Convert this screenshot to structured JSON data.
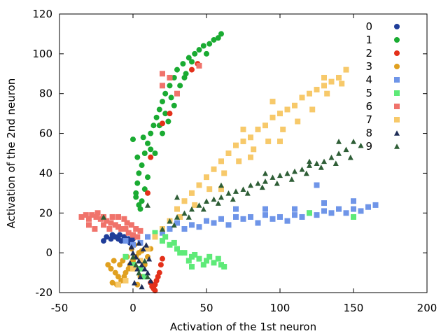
{
  "chart_data": {
    "type": "scatter",
    "title": "",
    "xlabel": "Activation of the 1st neuron",
    "ylabel": "Activation of the 2nd neuron",
    "xlim": [
      -50,
      200
    ],
    "ylim": [
      -20,
      120
    ],
    "xticks": [
      -50,
      0,
      50,
      100,
      150,
      200
    ],
    "yticks": [
      -20,
      0,
      20,
      40,
      60,
      80,
      100,
      120
    ],
    "grid": false,
    "legend_position": "top-right",
    "series": [
      {
        "name": "0",
        "color": "#1f3d99",
        "marker": "circle",
        "points": [
          [
            -18,
            8
          ],
          [
            -15,
            7
          ],
          [
            -12,
            8
          ],
          [
            -10,
            7
          ],
          [
            -8,
            6
          ],
          [
            -6,
            8
          ],
          [
            -5,
            6
          ],
          [
            -3,
            7
          ],
          [
            -2,
            5
          ],
          [
            -1,
            6
          ],
          [
            0,
            7
          ],
          [
            -20,
            6
          ],
          [
            -14,
            9
          ],
          [
            -9,
            9
          ]
        ]
      },
      {
        "name": "1",
        "color": "#1aab32",
        "marker": "circle",
        "points": [
          [
            2,
            30
          ],
          [
            3,
            35
          ],
          [
            4,
            40
          ],
          [
            6,
            44
          ],
          [
            8,
            50
          ],
          [
            10,
            55
          ],
          [
            12,
            60
          ],
          [
            14,
            64
          ],
          [
            16,
            68
          ],
          [
            18,
            72
          ],
          [
            20,
            76
          ],
          [
            22,
            80
          ],
          [
            25,
            84
          ],
          [
            28,
            88
          ],
          [
            30,
            92
          ],
          [
            34,
            95
          ],
          [
            38,
            98
          ],
          [
            42,
            100
          ],
          [
            48,
            104
          ],
          [
            55,
            107
          ],
          [
            60,
            110
          ],
          [
            5,
            22
          ],
          [
            6,
            26
          ],
          [
            8,
            32
          ],
          [
            10,
            38
          ],
          [
            15,
            50
          ],
          [
            20,
            60
          ],
          [
            24,
            66
          ],
          [
            28,
            74
          ],
          [
            32,
            84
          ],
          [
            36,
            90
          ],
          [
            45,
            102
          ],
          [
            52,
            105
          ],
          [
            0,
            57
          ],
          [
            3,
            48
          ],
          [
            7,
            58
          ],
          [
            12,
            52
          ],
          [
            18,
            64
          ],
          [
            22,
            70
          ],
          [
            26,
            78
          ],
          [
            35,
            88
          ],
          [
            40,
            96
          ],
          [
            50,
            100
          ],
          [
            58,
            108
          ],
          [
            4,
            24
          ],
          [
            2,
            28
          ]
        ]
      },
      {
        "name": "2",
        "color": "#e3301a",
        "marker": "circle",
        "points": [
          [
            14,
            -18
          ],
          [
            15,
            -16
          ],
          [
            16,
            -14
          ],
          [
            17,
            -12
          ],
          [
            13,
            -17
          ],
          [
            12,
            -15
          ],
          [
            18,
            -10
          ],
          [
            19,
            -6
          ],
          [
            20,
            -3
          ],
          [
            15,
            -19
          ],
          [
            10,
            30
          ],
          [
            12,
            48
          ],
          [
            25,
            70
          ],
          [
            40,
            92
          ],
          [
            44,
            95
          ],
          [
            20,
            65
          ]
        ]
      },
      {
        "name": "3",
        "color": "#e0a020",
        "marker": "circle",
        "points": [
          [
            -15,
            -8
          ],
          [
            -12,
            -10
          ],
          [
            -10,
            -12
          ],
          [
            -8,
            -14
          ],
          [
            -6,
            -12
          ],
          [
            -5,
            -10
          ],
          [
            -3,
            -8
          ],
          [
            -2,
            -6
          ],
          [
            0,
            -4
          ],
          [
            2,
            -2
          ],
          [
            4,
            0
          ],
          [
            6,
            1
          ],
          [
            -14,
            -15
          ],
          [
            -11,
            -16
          ],
          [
            -9,
            -6
          ],
          [
            -7,
            -4
          ],
          [
            -4,
            -2
          ],
          [
            -1,
            2
          ],
          [
            1,
            4
          ],
          [
            3,
            -16
          ],
          [
            5,
            -12
          ],
          [
            8,
            -6
          ],
          [
            10,
            -2
          ],
          [
            12,
            2
          ],
          [
            -17,
            -6
          ],
          [
            -13,
            -4
          ]
        ]
      },
      {
        "name": "4",
        "color": "#6f95e8",
        "marker": "square",
        "points": [
          [
            30,
            15
          ],
          [
            40,
            14
          ],
          [
            50,
            16
          ],
          [
            60,
            17
          ],
          [
            70,
            18
          ],
          [
            80,
            18
          ],
          [
            90,
            19
          ],
          [
            100,
            18
          ],
          [
            110,
            19
          ],
          [
            120,
            20
          ],
          [
            130,
            21
          ],
          [
            140,
            22
          ],
          [
            150,
            22
          ],
          [
            160,
            23
          ],
          [
            165,
            24
          ],
          [
            35,
            12
          ],
          [
            45,
            13
          ],
          [
            55,
            15
          ],
          [
            65,
            14
          ],
          [
            75,
            17
          ],
          [
            85,
            15
          ],
          [
            95,
            17
          ],
          [
            105,
            16
          ],
          [
            115,
            18
          ],
          [
            125,
            19
          ],
          [
            135,
            20
          ],
          [
            145,
            20
          ],
          [
            155,
            21
          ],
          [
            25,
            12
          ],
          [
            20,
            10
          ],
          [
            70,
            22
          ],
          [
            90,
            22
          ],
          [
            110,
            22
          ],
          [
            130,
            25
          ],
          [
            150,
            26
          ],
          [
            125,
            34
          ],
          [
            10,
            8
          ],
          [
            5,
            5
          ],
          [
            0,
            4
          ],
          [
            -5,
            6
          ]
        ]
      },
      {
        "name": "5",
        "color": "#5eea78",
        "marker": "square",
        "points": [
          [
            20,
            6
          ],
          [
            25,
            4
          ],
          [
            30,
            2
          ],
          [
            35,
            0
          ],
          [
            40,
            -2
          ],
          [
            45,
            -3
          ],
          [
            50,
            -4
          ],
          [
            55,
            -5
          ],
          [
            60,
            -6
          ],
          [
            62,
            -7
          ],
          [
            22,
            8
          ],
          [
            28,
            5
          ],
          [
            32,
            0
          ],
          [
            38,
            -4
          ],
          [
            42,
            -1
          ],
          [
            48,
            -6
          ],
          [
            52,
            -2
          ],
          [
            58,
            -3
          ],
          [
            15,
            10
          ],
          [
            -5,
            -2
          ],
          [
            0,
            -6
          ],
          [
            5,
            -8
          ],
          [
            8,
            -12
          ],
          [
            120,
            20
          ],
          [
            150,
            18
          ],
          [
            40,
            -7
          ]
        ]
      },
      {
        "name": "6",
        "color": "#f0736b",
        "marker": "square",
        "points": [
          [
            -35,
            18
          ],
          [
            -32,
            19
          ],
          [
            -30,
            17
          ],
          [
            -28,
            19
          ],
          [
            -25,
            18
          ],
          [
            -22,
            17
          ],
          [
            -20,
            18
          ],
          [
            -18,
            16
          ],
          [
            -15,
            15
          ],
          [
            -12,
            14
          ],
          [
            -10,
            13
          ],
          [
            -8,
            12
          ],
          [
            -5,
            12
          ],
          [
            -3,
            10
          ],
          [
            0,
            9
          ],
          [
            3,
            8
          ],
          [
            -30,
            14
          ],
          [
            -26,
            12
          ],
          [
            -24,
            20
          ],
          [
            -20,
            14
          ],
          [
            -16,
            12
          ],
          [
            -14,
            18
          ],
          [
            -10,
            18
          ],
          [
            -6,
            17
          ],
          [
            -4,
            15
          ],
          [
            -1,
            14
          ],
          [
            2,
            12
          ],
          [
            5,
            11
          ],
          [
            20,
            84
          ],
          [
            25,
            88
          ],
          [
            30,
            80
          ],
          [
            45,
            94
          ],
          [
            20,
            90
          ]
        ]
      },
      {
        "name": "7",
        "color": "#f7c96a",
        "marker": "square",
        "points": [
          [
            15,
            8
          ],
          [
            20,
            12
          ],
          [
            25,
            16
          ],
          [
            30,
            22
          ],
          [
            35,
            26
          ],
          [
            40,
            30
          ],
          [
            45,
            34
          ],
          [
            50,
            38
          ],
          [
            55,
            42
          ],
          [
            60,
            46
          ],
          [
            65,
            50
          ],
          [
            70,
            54
          ],
          [
            75,
            56
          ],
          [
            80,
            58
          ],
          [
            85,
            62
          ],
          [
            90,
            64
          ],
          [
            95,
            68
          ],
          [
            100,
            70
          ],
          [
            105,
            72
          ],
          [
            110,
            74
          ],
          [
            115,
            78
          ],
          [
            120,
            80
          ],
          [
            125,
            82
          ],
          [
            130,
            84
          ],
          [
            135,
            86
          ],
          [
            140,
            88
          ],
          [
            145,
            92
          ],
          [
            32,
            18
          ],
          [
            42,
            24
          ],
          [
            52,
            32
          ],
          [
            62,
            40
          ],
          [
            72,
            46
          ],
          [
            82,
            52
          ],
          [
            92,
            56
          ],
          [
            102,
            62
          ],
          [
            112,
            66
          ],
          [
            122,
            72
          ],
          [
            132,
            80
          ],
          [
            142,
            85
          ],
          [
            60,
            32
          ],
          [
            80,
            48
          ],
          [
            100,
            56
          ],
          [
            10,
            2
          ],
          [
            5,
            -4
          ],
          [
            0,
            -8
          ],
          [
            -5,
            -14
          ],
          [
            -10,
            -16
          ],
          [
            75,
            62
          ],
          [
            95,
            76
          ],
          [
            130,
            88
          ]
        ]
      },
      {
        "name": "8",
        "color": "#1e2d57",
        "marker": "triangle",
        "points": [
          [
            0,
            0
          ],
          [
            2,
            -2
          ],
          [
            4,
            -4
          ],
          [
            6,
            -6
          ],
          [
            8,
            -8
          ],
          [
            10,
            -10
          ],
          [
            5,
            -12
          ],
          [
            3,
            -8
          ],
          [
            7,
            2
          ],
          [
            9,
            4
          ],
          [
            11,
            -3
          ],
          [
            12,
            -14
          ],
          [
            1,
            -15
          ],
          [
            6,
            -17
          ],
          [
            -2,
            -5
          ],
          [
            -1,
            3
          ],
          [
            4,
            5
          ]
        ]
      },
      {
        "name": "9",
        "color": "#2e5e36",
        "marker": "triangle",
        "points": [
          [
            20,
            12
          ],
          [
            25,
            16
          ],
          [
            30,
            18
          ],
          [
            35,
            20
          ],
          [
            40,
            22
          ],
          [
            45,
            24
          ],
          [
            50,
            26
          ],
          [
            55,
            27
          ],
          [
            60,
            28
          ],
          [
            65,
            30
          ],
          [
            70,
            31
          ],
          [
            75,
            32
          ],
          [
            80,
            34
          ],
          [
            85,
            35
          ],
          [
            90,
            36
          ],
          [
            95,
            38
          ],
          [
            100,
            39
          ],
          [
            105,
            40
          ],
          [
            110,
            41
          ],
          [
            115,
            42
          ],
          [
            120,
            44
          ],
          [
            125,
            45
          ],
          [
            130,
            46
          ],
          [
            135,
            48
          ],
          [
            140,
            50
          ],
          [
            145,
            52
          ],
          [
            150,
            56
          ],
          [
            155,
            54
          ],
          [
            28,
            14
          ],
          [
            38,
            18
          ],
          [
            48,
            22
          ],
          [
            58,
            25
          ],
          [
            68,
            27
          ],
          [
            78,
            30
          ],
          [
            88,
            33
          ],
          [
            98,
            35
          ],
          [
            108,
            37
          ],
          [
            118,
            40
          ],
          [
            128,
            43
          ],
          [
            138,
            45
          ],
          [
            148,
            48
          ],
          [
            60,
            34
          ],
          [
            90,
            40
          ],
          [
            120,
            46
          ],
          [
            140,
            56
          ],
          [
            0,
            -2
          ],
          [
            2,
            -6
          ],
          [
            4,
            -10
          ],
          [
            8,
            -4
          ],
          [
            10,
            -12
          ],
          [
            -20,
            18
          ],
          [
            10,
            24
          ],
          [
            30,
            28
          ]
        ]
      }
    ]
  }
}
